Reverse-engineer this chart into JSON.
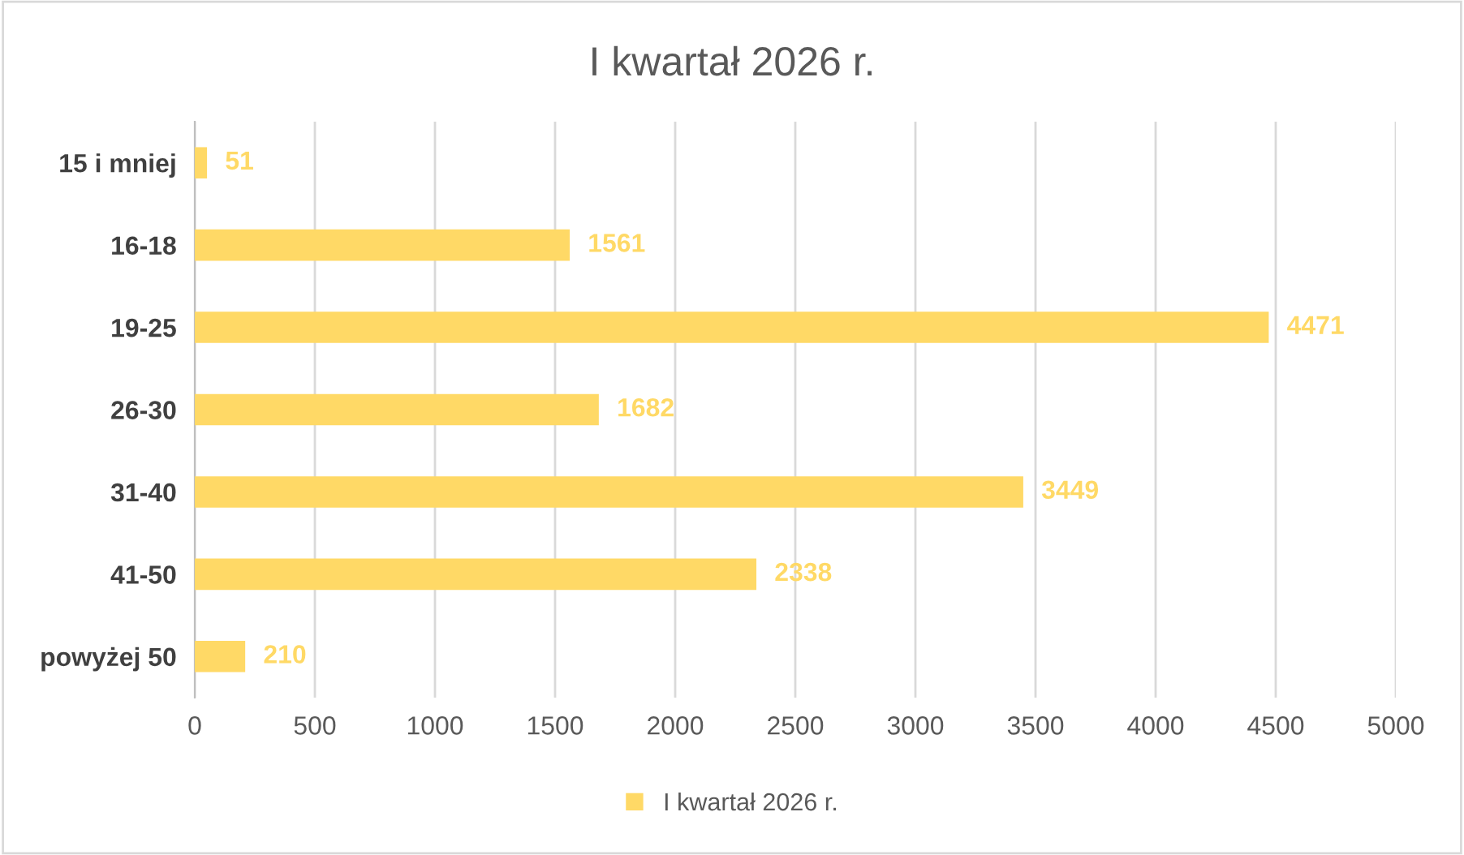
{
  "chart_data": {
    "type": "bar",
    "orientation": "horizontal",
    "title": "I kwartał 2026 r.",
    "categories": [
      "15 i mniej",
      "16-18",
      "19-25",
      "26-30",
      "31-40",
      "41-50",
      "powyżej 50"
    ],
    "series": [
      {
        "name": "I kwartał 2026 r.",
        "color": "#ffd966",
        "values": [
          51,
          1561,
          4471,
          1682,
          3449,
          2338,
          210
        ]
      }
    ],
    "xlim": [
      0,
      5000
    ],
    "xticks": [
      0,
      500,
      1000,
      1500,
      2000,
      2500,
      3000,
      3500,
      4000,
      4500,
      5000
    ],
    "grid": "x",
    "legend": "bottom",
    "data_labels": true
  }
}
